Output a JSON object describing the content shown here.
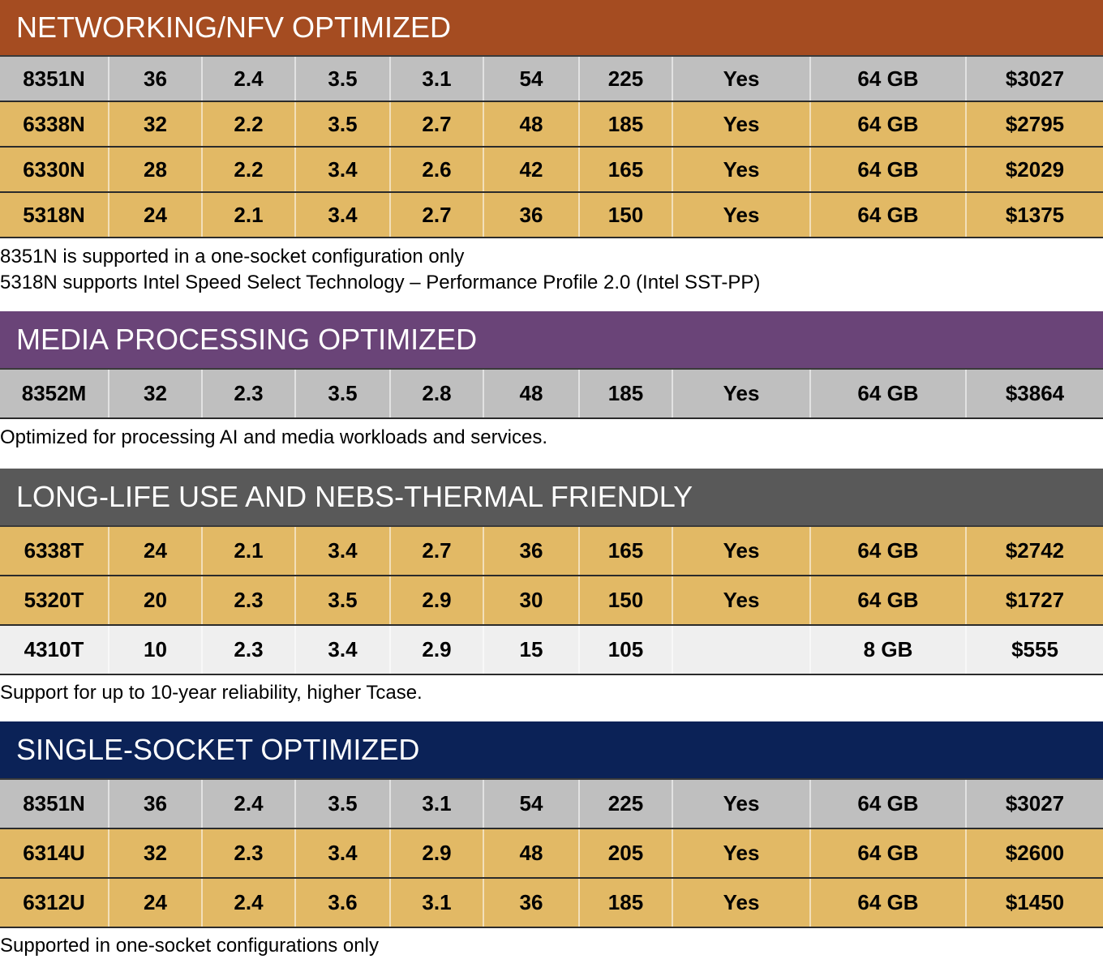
{
  "colors": {
    "networking": "#a54c21",
    "media": "#6a4478",
    "longlife": "#595959",
    "single": "#0b2257",
    "row_gray": "#bfbfbf",
    "row_gold": "#e2b965",
    "row_light": "#efefef"
  },
  "sections": [
    {
      "title": "NETWORKING/NFV OPTIMIZED",
      "rows": [
        [
          "8351N",
          "36",
          "2.4",
          "3.5",
          "3.1",
          "54",
          "225",
          "Yes",
          "64 GB",
          "$3027"
        ],
        [
          "6338N",
          "32",
          "2.2",
          "3.5",
          "2.7",
          "48",
          "185",
          "Yes",
          "64 GB",
          "$2795"
        ],
        [
          "6330N",
          "28",
          "2.2",
          "3.4",
          "2.6",
          "42",
          "165",
          "Yes",
          "64 GB",
          "$2029"
        ],
        [
          "5318N",
          "24",
          "2.1",
          "3.4",
          "2.7",
          "36",
          "150",
          "Yes",
          "64 GB",
          "$1375"
        ]
      ],
      "notes": [
        "8351N is supported in a one-socket configuration only",
        "5318N supports Intel Speed Select Technology – Performance Profile 2.0 (Intel SST-PP)"
      ]
    },
    {
      "title": "MEDIA PROCESSING OPTIMIZED",
      "rows": [
        [
          "8352M",
          "32",
          "2.3",
          "3.5",
          "2.8",
          "48",
          "185",
          "Yes",
          "64 GB",
          "$3864"
        ]
      ],
      "notes": [
        "Optimized for processing AI and media workloads and services."
      ]
    },
    {
      "title": "LONG-LIFE USE AND NEBS-THERMAL FRIENDLY",
      "rows": [
        [
          "6338T",
          "24",
          "2.1",
          "3.4",
          "2.7",
          "36",
          "165",
          "Yes",
          "64 GB",
          "$2742"
        ],
        [
          "5320T",
          "20",
          "2.3",
          "3.5",
          "2.9",
          "30",
          "150",
          "Yes",
          "64 GB",
          "$1727"
        ],
        [
          "4310T",
          "10",
          "2.3",
          "3.4",
          "2.9",
          "15",
          "105",
          "",
          "8 GB",
          "$555"
        ]
      ],
      "notes": [
        "Support for up to 10-year reliability, higher Tcase."
      ]
    },
    {
      "title": "SINGLE-SOCKET OPTIMIZED",
      "rows": [
        [
          "8351N",
          "36",
          "2.4",
          "3.5",
          "3.1",
          "54",
          "225",
          "Yes",
          "64 GB",
          "$3027"
        ],
        [
          "6314U",
          "32",
          "2.3",
          "3.4",
          "2.9",
          "48",
          "205",
          "Yes",
          "64 GB",
          "$2600"
        ],
        [
          "6312U",
          "24",
          "2.4",
          "3.6",
          "3.1",
          "36",
          "185",
          "Yes",
          "64 GB",
          "$1450"
        ]
      ],
      "notes": [
        "Supported in one-socket configurations only"
      ]
    }
  ]
}
